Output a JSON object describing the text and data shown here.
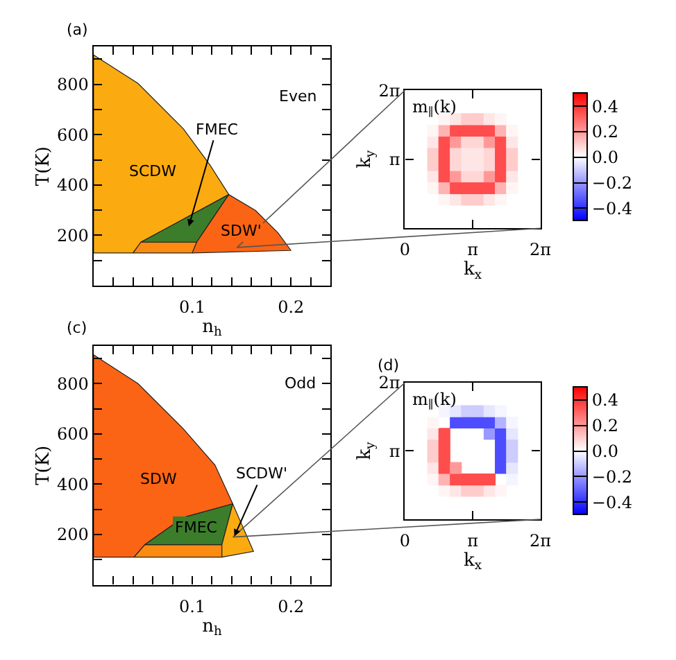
{
  "chart_data": [
    {
      "type": "area",
      "title": "(a)",
      "xlabel": "n$_{h}$",
      "ylabel": "T(K)",
      "xlim": [
        0,
        0.24
      ],
      "ylim": [
        0,
        950
      ],
      "xticks": [
        {
          "value": 0.02,
          "label": null
        },
        {
          "value": 0.04,
          "label": null
        },
        {
          "value": 0.06,
          "label": null
        },
        {
          "value": 0.08,
          "label": null
        },
        {
          "value": 0.1,
          "label": "0.1"
        },
        {
          "value": 0.12,
          "label": null
        },
        {
          "value": 0.14,
          "label": null
        },
        {
          "value": 0.16,
          "label": null
        },
        {
          "value": 0.18,
          "label": null
        },
        {
          "value": 0.2,
          "label": "0.2"
        },
        {
          "value": 0.22,
          "label": null
        }
      ],
      "yticks": [
        {
          "value": 100,
          "label": null
        },
        {
          "value": 200,
          "label": "200"
        },
        {
          "value": 300,
          "label": null
        },
        {
          "value": 400,
          "label": "400"
        },
        {
          "value": 500,
          "label": null
        },
        {
          "value": 600,
          "label": "600"
        },
        {
          "value": 700,
          "label": null
        },
        {
          "value": 800,
          "label": "800"
        },
        {
          "value": 900,
          "label": null
        }
      ],
      "annotations": [
        "Even"
      ],
      "series": [
        {
          "name": "SCDW",
          "color": "#fbab0f",
          "x": [
            0,
            0.045,
            0.091,
            0.118,
            0.137,
            0.048,
            0.04,
            0
          ],
          "values": [
            917,
            804,
            623,
            479,
            362,
            173,
            130,
            130
          ]
        },
        {
          "color": "#fc8b12",
          "x": [
            0.04,
            0.048,
            0.1045,
            0.1
          ],
          "values": [
            130,
            173,
            173,
            130
          ]
        },
        {
          "name": "FMEC",
          "color": "#3c7d2b",
          "x": [
            0.048,
            0.137,
            0.1045
          ],
          "values": [
            173,
            362,
            173
          ]
        },
        {
          "name": "SDW'",
          "color": "#fb6414",
          "x": [
            0.1,
            0.1045,
            0.137,
            0.164,
            0.187,
            0.2
          ],
          "values": [
            130,
            173,
            362,
            299,
            209,
            140
          ]
        }
      ]
    },
    {
      "type": "scatter",
      "marker": "square",
      "xlabel": "k$_{x}$",
      "ylabel": "k$_{y}$",
      "xlim": [
        0,
        6.2832
      ],
      "ylim": [
        0,
        6.2832
      ],
      "xticks": [
        {
          "value": 0,
          "label": "0"
        },
        {
          "value": 3.1416,
          "label": "π"
        },
        {
          "value": 6.2832,
          "label": "2π"
        }
      ],
      "yticks": [
        {
          "value": 0,
          "label": null
        },
        {
          "value": 3.1416,
          "label": "π"
        },
        {
          "value": 6.2832,
          "label": "2π"
        }
      ],
      "annotations": [
        "m$_{∥}$(k)"
      ],
      "clim": [
        -0.5,
        0.5
      ],
      "cticks": [
        {
          "value": -0.4,
          "label": "−0.4"
        },
        {
          "value": -0.2,
          "label": "−0.2"
        },
        {
          "value": 0,
          "label": "0.0"
        },
        {
          "value": 0.2,
          "label": "0.2"
        },
        {
          "value": 0.4,
          "label": "0.4"
        }
      ],
      "x": [
        1.83,
        2.36,
        2.88,
        3.4,
        3.93,
        4.45,
        1.31,
        1.83,
        2.36,
        2.88,
        3.4,
        3.93,
        4.45,
        4.97,
        1.31,
        1.83,
        2.36,
        2.88,
        3.4,
        3.93,
        4.45,
        4.97,
        1.31,
        1.83,
        2.36,
        2.88,
        3.4,
        3.93,
        4.45,
        4.97,
        1.31,
        1.83,
        2.36,
        2.88,
        3.4,
        3.93,
        4.45,
        4.97,
        1.31,
        1.83,
        2.36,
        2.88,
        3.4,
        3.93,
        4.45,
        4.97,
        1.31,
        1.83,
        2.36,
        2.88,
        3.4,
        3.93,
        4.45,
        4.97,
        1.83,
        2.36,
        2.88,
        3.4,
        3.93,
        4.45
      ],
      "values": [
        1.31,
        1.31,
        1.31,
        1.31,
        1.31,
        1.31,
        1.83,
        1.83,
        1.83,
        1.83,
        1.83,
        1.83,
        1.83,
        1.83,
        2.36,
        2.36,
        2.36,
        2.36,
        2.36,
        2.36,
        2.36,
        2.36,
        2.88,
        2.88,
        2.88,
        2.88,
        2.88,
        2.88,
        2.88,
        2.88,
        3.4,
        3.4,
        3.4,
        3.4,
        3.4,
        3.4,
        3.4,
        3.4,
        3.93,
        3.93,
        3.93,
        3.93,
        3.93,
        3.93,
        3.93,
        3.93,
        4.45,
        4.45,
        4.45,
        4.45,
        4.45,
        4.45,
        4.45,
        4.45,
        4.97,
        4.97,
        4.97,
        4.97,
        4.97,
        4.97
      ],
      "cvalues": [
        0.02,
        0.05,
        0.1,
        0.1,
        0.05,
        0.02,
        0.02,
        0.15,
        0.35,
        0.35,
        0.35,
        0.35,
        0.15,
        0.02,
        0.05,
        0.35,
        0.2,
        0.08,
        0.08,
        0.2,
        0.35,
        0.05,
        0.1,
        0.35,
        0.08,
        0.05,
        0.05,
        0.08,
        0.35,
        0.1,
        0.1,
        0.35,
        0.08,
        0.05,
        0.05,
        0.08,
        0.35,
        0.1,
        0.05,
        0.35,
        0.2,
        0.08,
        0.08,
        0.2,
        0.35,
        0.05,
        0.02,
        0.15,
        0.35,
        0.35,
        0.35,
        0.35,
        0.15,
        0.02,
        0.02,
        0.05,
        0.1,
        0.1,
        0.05,
        0.02
      ]
    },
    {
      "type": "area",
      "title": "(c)",
      "xlabel": "n$_{h}$",
      "ylabel": "T(K)",
      "xlim": [
        0,
        0.24
      ],
      "ylim": [
        0,
        950
      ],
      "xticks": [
        {
          "value": 0.02,
          "label": null
        },
        {
          "value": 0.04,
          "label": null
        },
        {
          "value": 0.06,
          "label": null
        },
        {
          "value": 0.08,
          "label": null
        },
        {
          "value": 0.1,
          "label": "0.1"
        },
        {
          "value": 0.12,
          "label": null
        },
        {
          "value": 0.14,
          "label": null
        },
        {
          "value": 0.16,
          "label": null
        },
        {
          "value": 0.18,
          "label": null
        },
        {
          "value": 0.2,
          "label": "0.2"
        },
        {
          "value": 0.22,
          "label": null
        }
      ],
      "yticks": [
        {
          "value": 100,
          "label": null
        },
        {
          "value": 200,
          "label": "200"
        },
        {
          "value": 300,
          "label": null
        },
        {
          "value": 400,
          "label": "400"
        },
        {
          "value": 500,
          "label": null
        },
        {
          "value": 600,
          "label": "600"
        },
        {
          "value": 700,
          "label": null
        },
        {
          "value": 800,
          "label": "800"
        },
        {
          "value": 900,
          "label": null
        }
      ],
      "annotations": [
        "Odd"
      ],
      "series": [
        {
          "name": "SDW",
          "color": "#fb6414",
          "x": [
            0,
            0.045,
            0.091,
            0.123,
            0.141,
            0.091,
            0.052,
            0.041,
            0
          ],
          "values": [
            914,
            800,
            620,
            476,
            322,
            268,
            160,
            110,
            110
          ]
        },
        {
          "color": "#fc8b12",
          "x": [
            0.041,
            0.052,
            0.13,
            0.13
          ],
          "values": [
            110,
            160,
            160,
            110
          ]
        },
        {
          "name": "FMEC",
          "color": "#3c7d2b",
          "x": [
            0.052,
            0.091,
            0.141,
            0.13
          ],
          "values": [
            160,
            268,
            322,
            160
          ]
        },
        {
          "name": "SCDW'",
          "color": "#fbab0f",
          "x": [
            0.13,
            0.13,
            0.141,
            0.15,
            0.162
          ],
          "values": [
            110,
            160,
            322,
            241,
            133
          ]
        }
      ]
    },
    {
      "type": "scatter",
      "title": "(d)",
      "marker": "square",
      "xlabel": "k$_{x}$",
      "ylabel": "k$_{y}$",
      "xlim": [
        0,
        6.2832
      ],
      "ylim": [
        0,
        6.2832
      ],
      "xticks": [
        {
          "value": 0,
          "label": "0"
        },
        {
          "value": 3.1416,
          "label": "π"
        },
        {
          "value": 6.2832,
          "label": "2π"
        }
      ],
      "yticks": [
        {
          "value": 0,
          "label": null
        },
        {
          "value": 3.1416,
          "label": "π"
        },
        {
          "value": 6.2832,
          "label": "2π"
        }
      ],
      "annotations": [
        "m$_{∥}$(k)"
      ],
      "clim": [
        -0.5,
        0.5
      ],
      "cticks": [
        {
          "value": -0.4,
          "label": "−0.4"
        },
        {
          "value": -0.2,
          "label": "−0.2"
        },
        {
          "value": 0,
          "label": "0.0"
        },
        {
          "value": 0.2,
          "label": "0.2"
        },
        {
          "value": 0.4,
          "label": "0.4"
        }
      ],
      "x": [
        1.83,
        2.36,
        2.88,
        3.4,
        3.93,
        4.45,
        1.31,
        1.83,
        2.36,
        2.88,
        3.4,
        3.93,
        4.97,
        1.31,
        1.83,
        2.36,
        4.45,
        4.97,
        1.31,
        1.83,
        4.45,
        4.97,
        1.31,
        1.83,
        4.45,
        4.97,
        1.31,
        1.83,
        3.93,
        4.45,
        4.97,
        1.31,
        2.36,
        2.88,
        3.4,
        3.93,
        4.45,
        4.97,
        1.83,
        2.36,
        2.88,
        3.4,
        3.93,
        4.45
      ],
      "values": [
        1.31,
        1.31,
        1.31,
        1.31,
        1.31,
        1.31,
        1.83,
        1.83,
        1.83,
        1.83,
        1.83,
        1.83,
        1.83,
        2.36,
        2.36,
        2.36,
        2.36,
        2.36,
        2.88,
        2.88,
        2.88,
        2.88,
        3.4,
        3.4,
        3.4,
        3.4,
        3.93,
        3.93,
        3.93,
        3.93,
        3.93,
        4.45,
        4.45,
        4.45,
        4.45,
        4.45,
        4.45,
        4.45,
        4.97,
        4.97,
        4.97,
        4.97,
        4.97,
        4.97
      ],
      "cvalues": [
        0.02,
        0.05,
        0.1,
        0.1,
        0.05,
        0.02,
        0.02,
        0.15,
        0.35,
        0.35,
        0.35,
        0.35,
        -0.02,
        0.05,
        0.35,
        0.2,
        -0.35,
        -0.05,
        0.1,
        0.35,
        -0.35,
        -0.1,
        0.1,
        0.35,
        -0.35,
        -0.1,
        0.05,
        0.35,
        -0.2,
        -0.35,
        -0.05,
        0.02,
        -0.35,
        -0.35,
        -0.35,
        -0.35,
        -0.15,
        -0.02,
        -0.02,
        -0.05,
        -0.1,
        -0.1,
        -0.05,
        -0.02
      ]
    }
  ]
}
